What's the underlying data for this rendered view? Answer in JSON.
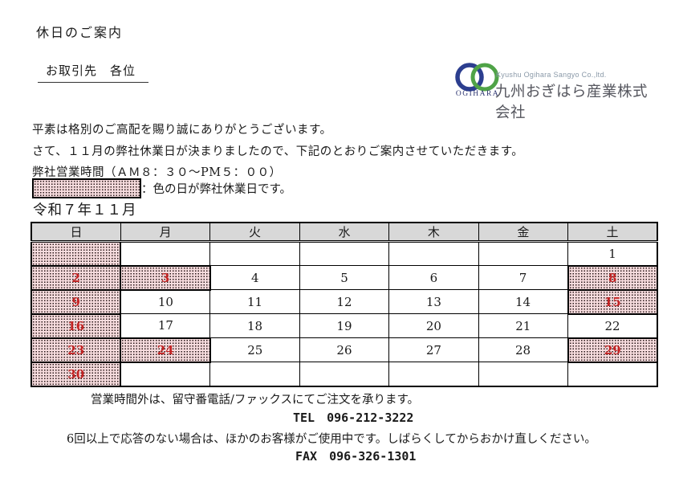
{
  "page": {
    "title": "休日のご案内",
    "recipient": "お取引先　各位"
  },
  "logo": {
    "mark_text": "OGIHARA",
    "company_en": "Kyushu Ogihara Sangyo Co.,ltd.",
    "company_ja": "九州おぎはら産業株式会社",
    "colors": {
      "circle_left": "#2c3e8f",
      "circle_right": "#4fa347",
      "company_ja_text": "#55565e",
      "company_en_text": "#8a99a8"
    }
  },
  "body": {
    "greeting": "平素は格別のご高配を賜り誠にありがとうございます。",
    "announcement": "さて、１１月の弊社休業日が決まりましたので、下記のとおりご案内させていただきます。",
    "hours": "弊社営業時間（ＡＭ８：３０～PM５：００）",
    "legend_text": "：色の日が弊社休業日です。"
  },
  "calendar": {
    "title": "令和７年１１月",
    "weekdays": [
      "日",
      "月",
      "火",
      "水",
      "木",
      "金",
      "土"
    ],
    "rows": [
      [
        {
          "d": "",
          "h": true
        },
        {
          "d": "",
          "h": false
        },
        {
          "d": "",
          "h": false
        },
        {
          "d": "",
          "h": false
        },
        {
          "d": "",
          "h": false
        },
        {
          "d": "",
          "h": false
        },
        {
          "d": "1",
          "h": false
        }
      ],
      [
        {
          "d": "2",
          "h": true
        },
        {
          "d": "3",
          "h": true
        },
        {
          "d": "4",
          "h": false
        },
        {
          "d": "5",
          "h": false
        },
        {
          "d": "6",
          "h": false
        },
        {
          "d": "7",
          "h": false
        },
        {
          "d": "8",
          "h": true
        }
      ],
      [
        {
          "d": "9",
          "h": true
        },
        {
          "d": "10",
          "h": false
        },
        {
          "d": "11",
          "h": false
        },
        {
          "d": "12",
          "h": false
        },
        {
          "d": "13",
          "h": false
        },
        {
          "d": "14",
          "h": false
        },
        {
          "d": "15",
          "h": true
        }
      ],
      [
        {
          "d": "16",
          "h": true
        },
        {
          "d": "17",
          "h": false
        },
        {
          "d": "18",
          "h": false
        },
        {
          "d": "19",
          "h": false
        },
        {
          "d": "20",
          "h": false
        },
        {
          "d": "21",
          "h": false
        },
        {
          "d": "22",
          "h": false
        }
      ],
      [
        {
          "d": "23",
          "h": true
        },
        {
          "d": "24",
          "h": true
        },
        {
          "d": "25",
          "h": false
        },
        {
          "d": "26",
          "h": false
        },
        {
          "d": "27",
          "h": false
        },
        {
          "d": "28",
          "h": false
        },
        {
          "d": "29",
          "h": true
        }
      ],
      [
        {
          "d": "30",
          "h": true
        },
        {
          "d": "",
          "h": false
        },
        {
          "d": "",
          "h": false
        },
        {
          "d": "",
          "h": false
        },
        {
          "d": "",
          "h": false
        },
        {
          "d": "",
          "h": false
        },
        {
          "d": "",
          "h": false
        }
      ]
    ],
    "colors": {
      "holiday_bg": "#f6dbdd",
      "holiday_text": "#c32222",
      "header_bg": "#d8d8d8"
    }
  },
  "footer": {
    "after_hours": "営業時間外は、留守番電話/ファックスにてご注文を承ります。",
    "tel": "TEL　096-212-3222",
    "busy_note": "6回以上で応答のない場合は、ほかのお客様がご使用中です。しばらくしてからおかけ直しください。",
    "fax": "FAX　096-326-1301"
  }
}
